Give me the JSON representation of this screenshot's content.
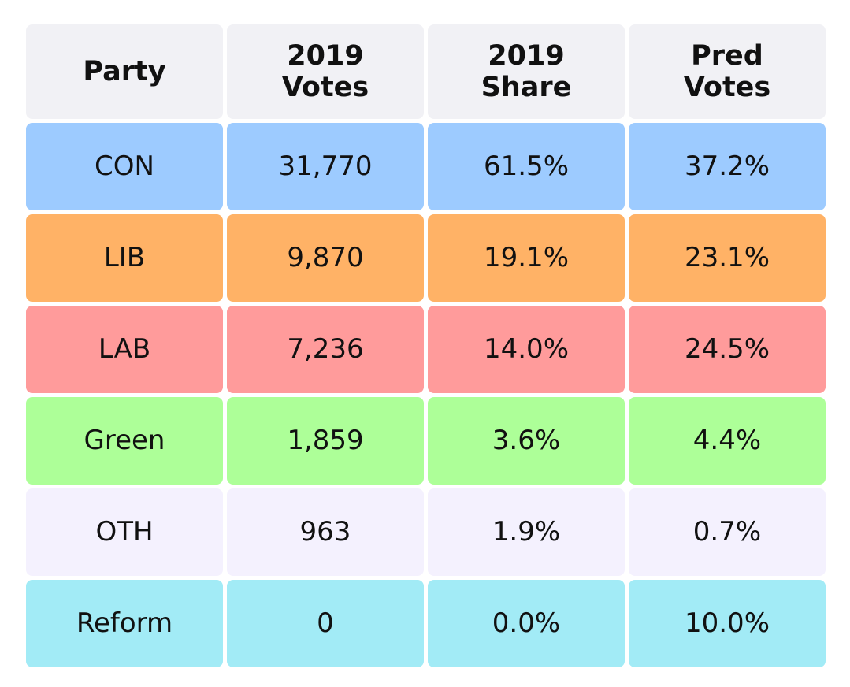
{
  "chart_data": {
    "type": "table",
    "columns": [
      "Party",
      "2019\nVotes",
      "2019\nShare",
      "Pred\nVotes"
    ],
    "rows": [
      {
        "cells": [
          "CON",
          "31,770",
          "61.5%",
          "37.2%"
        ],
        "color": "#9dcbff"
      },
      {
        "cells": [
          "LIB",
          "9,870",
          "19.1%",
          "23.1%"
        ],
        "color": "#ffb266"
      },
      {
        "cells": [
          "LAB",
          "7,236",
          "14.0%",
          "24.5%"
        ],
        "color": "#ff9b9b"
      },
      {
        "cells": [
          "Green",
          "1,859",
          "3.6%",
          "4.4%"
        ],
        "color": "#adff98"
      },
      {
        "cells": [
          "OTH",
          "963",
          "1.9%",
          "0.7%"
        ],
        "color": "#f4f1fe"
      },
      {
        "cells": [
          "Reform",
          "0",
          "0.0%",
          "10.0%"
        ],
        "color": "#a2ebf6"
      }
    ]
  }
}
